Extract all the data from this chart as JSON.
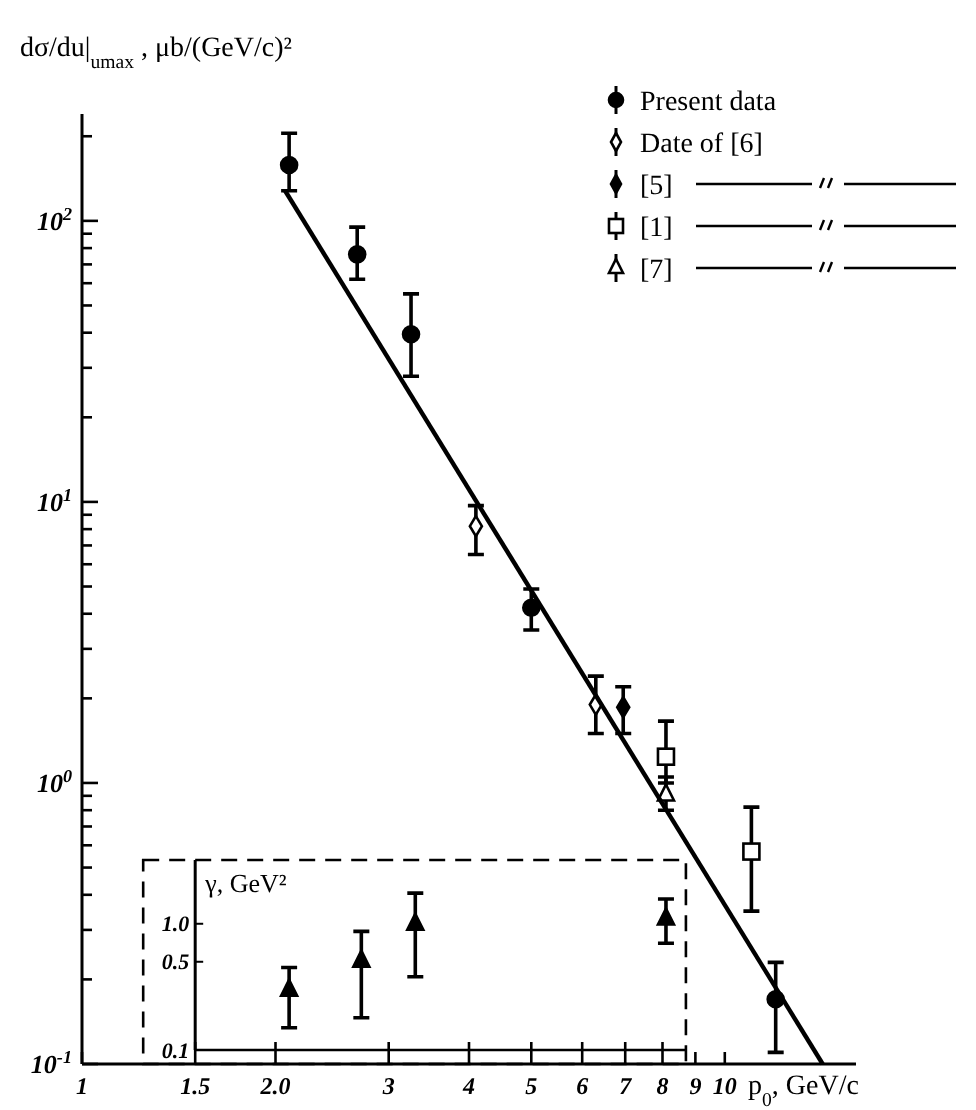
{
  "chart_data": [
    {
      "type": "scatter",
      "ylabel": "dσ/du|$_{umax}$ , μb/(GeV/c)²",
      "xlabel": "p$_{0}$, GeV/c",
      "log": "xy",
      "xlim": [
        1,
        16
      ],
      "ylim": [
        0.1,
        240
      ],
      "xticks": [
        1,
        9,
        10
      ],
      "yticks": [
        {
          "value": 0.1,
          "label": "10$^{-1}$"
        },
        {
          "value": 0.2,
          "label": null
        },
        {
          "value": 0.3,
          "label": null
        },
        {
          "value": 0.4,
          "label": null
        },
        {
          "value": 0.5,
          "label": null
        },
        {
          "value": 0.6,
          "label": null
        },
        {
          "value": 0.7,
          "label": null
        },
        {
          "value": 0.8,
          "label": null
        },
        {
          "value": 0.9,
          "label": null
        },
        {
          "value": 1,
          "label": "10$^{0}$"
        },
        {
          "value": 2,
          "label": null
        },
        {
          "value": 3,
          "label": null
        },
        {
          "value": 4,
          "label": null
        },
        {
          "value": 5,
          "label": null
        },
        {
          "value": 6,
          "label": null
        },
        {
          "value": 7,
          "label": null
        },
        {
          "value": 8,
          "label": null
        },
        {
          "value": 9,
          "label": null
        },
        {
          "value": 10,
          "label": "10$^{1}$"
        },
        {
          "value": 20,
          "label": null
        },
        {
          "value": 30,
          "label": null
        },
        {
          "value": 40,
          "label": null
        },
        {
          "value": 50,
          "label": null
        },
        {
          "value": 60,
          "label": null
        },
        {
          "value": 70,
          "label": null
        },
        {
          "value": 80,
          "label": null
        },
        {
          "value": 90,
          "label": null
        },
        {
          "value": 100,
          "label": "10$^{2}$"
        },
        {
          "value": 200,
          "label": null
        }
      ],
      "legend": "top right",
      "series": [
        {
          "name": "Present data",
          "color": "#000000",
          "marker": "circle",
          "x": [
            2.1,
            2.68,
            3.25,
            5.0,
            12
          ],
          "values": [
            158,
            76,
            39.5,
            4.2,
            0.17
          ],
          "errors": [
            [
              128,
              205
            ],
            [
              62,
              95
            ],
            [
              28,
              55
            ],
            [
              3.5,
              4.9
            ],
            [
              0.11,
              0.23
            ]
          ]
        },
        {
          "name": "Date of [6]",
          "color": "#ffffff",
          "marker": "diamond",
          "x": [
            4.1,
            6.3
          ],
          "values": [
            8.2,
            1.9
          ],
          "errors": [
            [
              6.5,
              9.7
            ],
            [
              1.5,
              2.4
            ]
          ]
        },
        {
          "name": "[5]",
          "color": "#000000",
          "marker": "diamond",
          "x": [
            6.95
          ],
          "values": [
            1.86
          ],
          "errors": [
            [
              1.5,
              2.2
            ]
          ]
        },
        {
          "name": "[1]",
          "color": "#ffffff",
          "marker": "square",
          "x": [
            8.1,
            11
          ],
          "values": [
            1.24,
            0.57
          ],
          "errors": [
            [
              1.0,
              1.66
            ],
            [
              0.35,
              0.82
            ]
          ]
        },
        {
          "name": "[7]",
          "color": "#ffffff",
          "marker": "triangle",
          "x": [
            8.1
          ],
          "values": [
            0.91
          ],
          "errors": [
            [
              0.8,
              1.05
            ]
          ]
        },
        {
          "type": "line",
          "color": "#000000",
          "x": [
            2.07,
            14.2
          ],
          "values": [
            128,
            0.1
          ]
        }
      ]
    },
    {
      "type": "scatter",
      "ylabel": "γ, GeV²",
      "log": "xy",
      "xlim": [
        1.5,
        8.7
      ],
      "ylim": [
        0.1,
        3.2
      ],
      "xticks": [
        1.5,
        {
          "value": 2,
          "label": "2.0"
        },
        3,
        4,
        5,
        6,
        7,
        8
      ],
      "yticks": [
        0.1,
        0.5,
        {
          "value": 1,
          "label": "1.0"
        }
      ],
      "series": [
        {
          "color": "#000000",
          "marker": "triangle",
          "x": [
            2.1,
            2.72,
            3.3,
            8.1
          ],
          "values": [
            0.3,
            0.51,
            1.0,
            1.1
          ],
          "errors": [
            [
              0.15,
              0.45
            ],
            [
              0.18,
              0.87
            ],
            [
              0.38,
              1.75
            ],
            [
              0.7,
              1.57
            ]
          ]
        }
      ]
    }
  ]
}
